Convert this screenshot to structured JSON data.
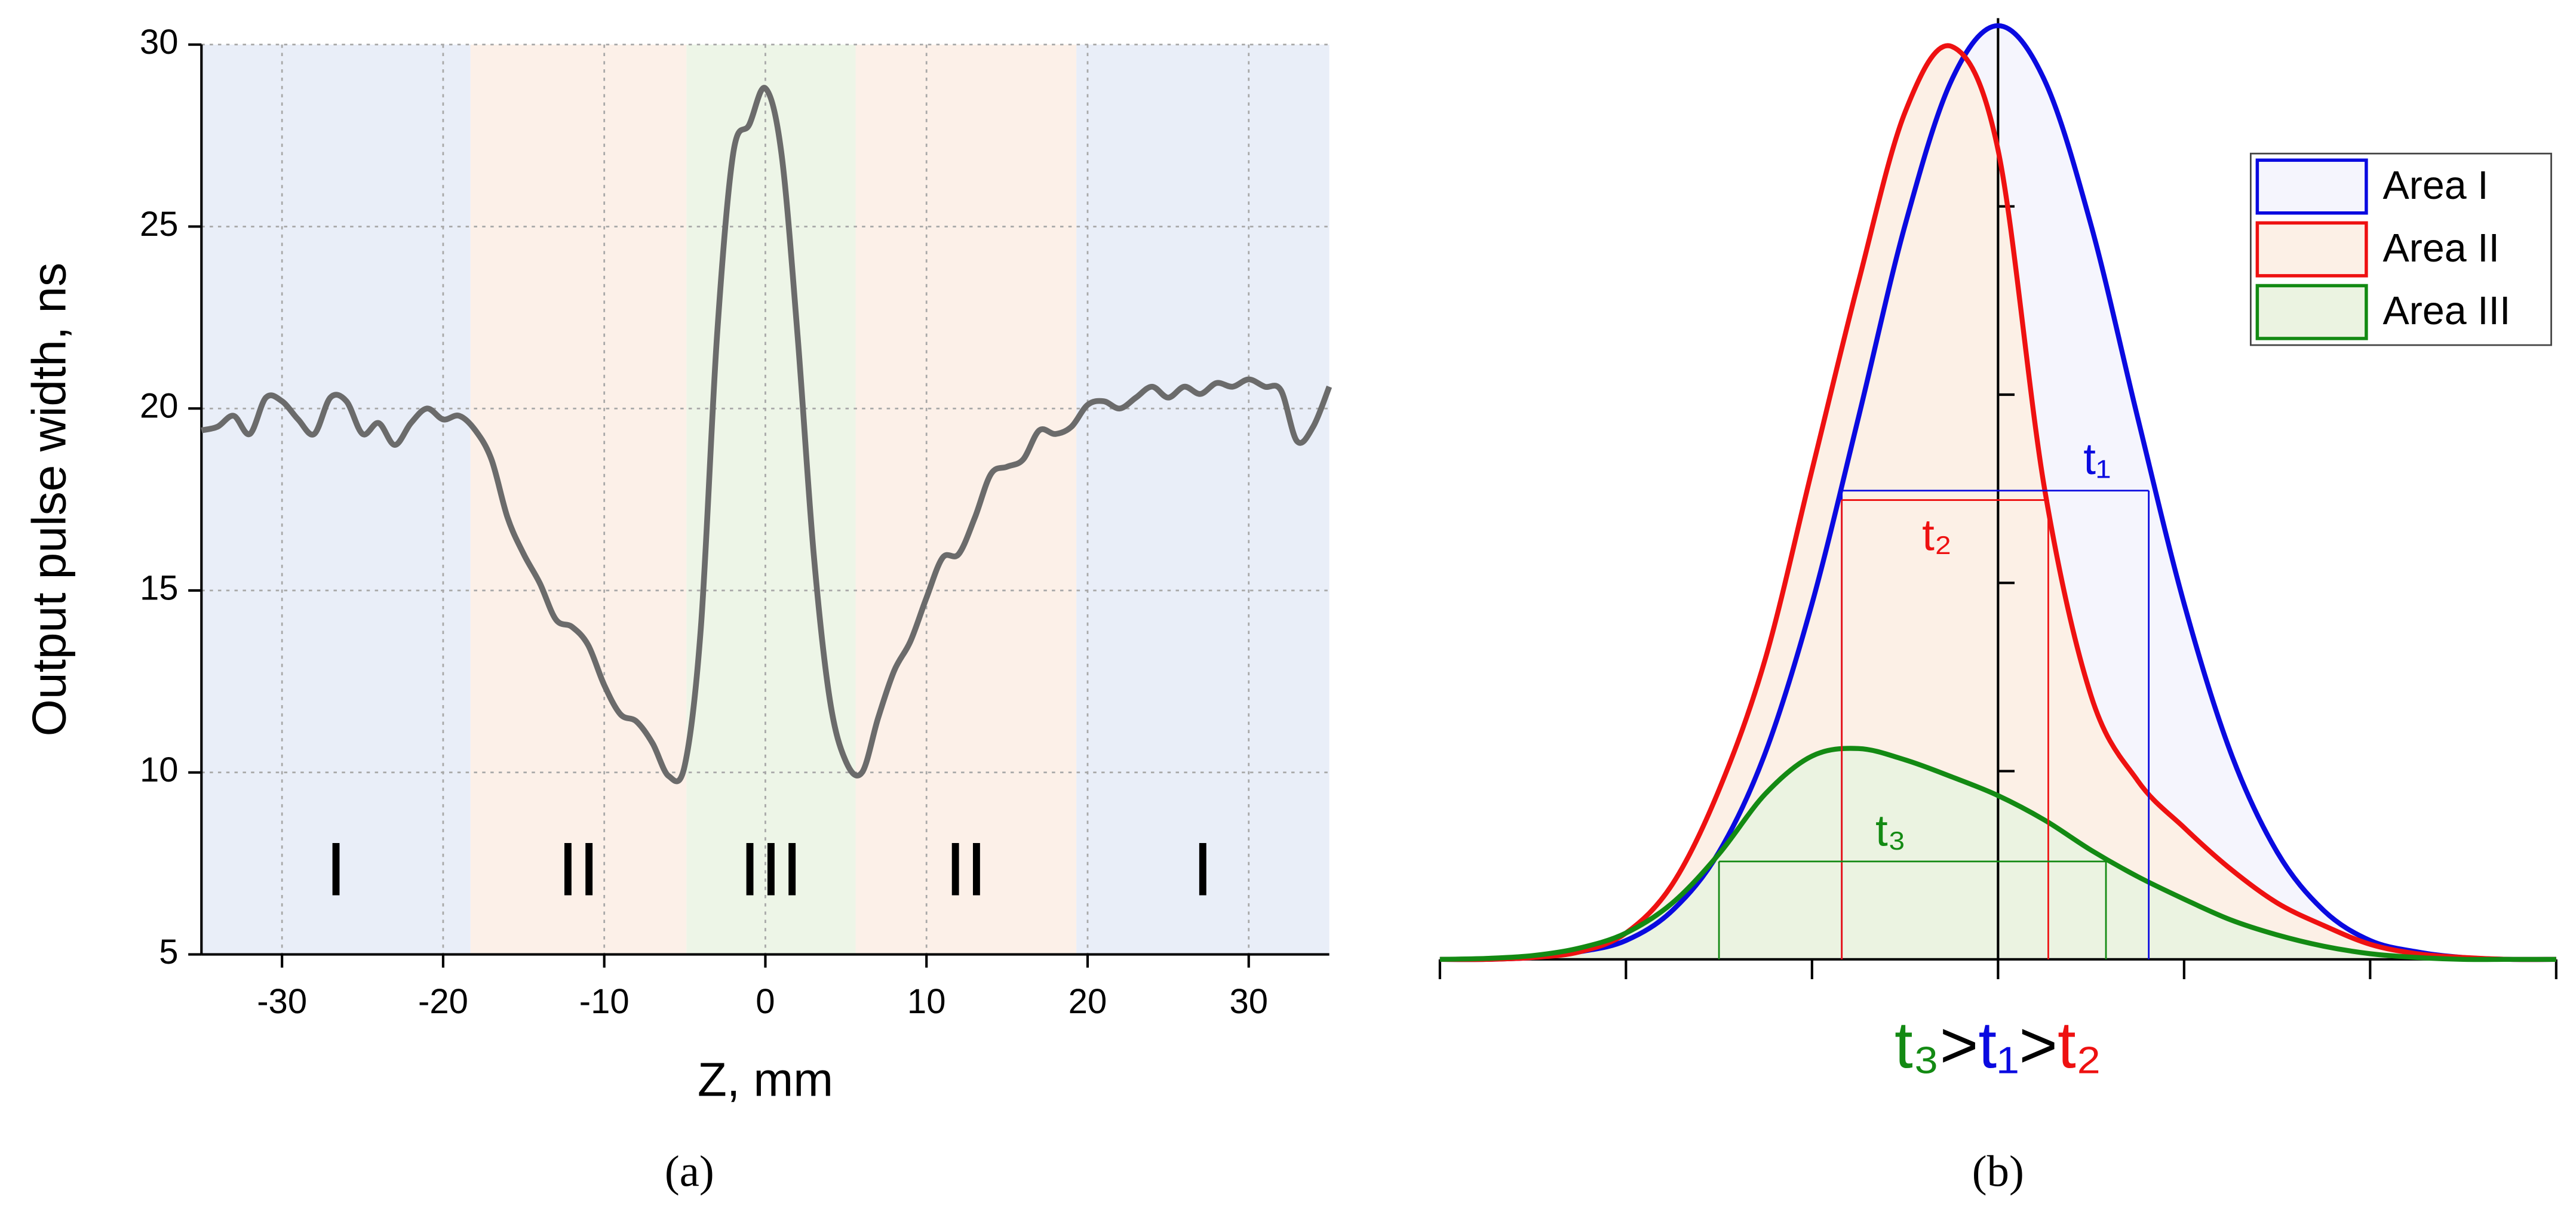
{
  "chart_data": [
    {
      "type": "line",
      "x_label": "Z, mm",
      "y_label": "Output pulse width, ns",
      "x": [
        -35,
        -34,
        -33,
        -32,
        -31,
        -30,
        -29,
        -28,
        -27,
        -26,
        -25,
        -24,
        -23,
        -22,
        -21,
        -20,
        -19,
        -18,
        -17,
        -16,
        -15,
        -14,
        -13,
        -12,
        -11,
        -10,
        -9,
        -8,
        -7,
        -6,
        -5,
        -4,
        -3,
        -2,
        -1,
        0,
        1,
        2,
        3,
        4,
        5,
        6,
        7,
        8,
        9,
        10,
        11,
        12,
        13,
        14,
        15,
        16,
        17,
        18,
        19,
        20,
        21,
        22,
        23,
        24,
        25,
        26,
        27,
        28,
        29,
        30,
        31,
        32,
        33,
        34,
        35
      ],
      "series": [
        {
          "color": "#6b6b6b",
          "values": [
            19.4,
            19.5,
            19.8,
            19.3,
            20.3,
            20.2,
            19.7,
            19.3,
            20.3,
            20.2,
            19.3,
            19.6,
            19.0,
            19.6,
            20.0,
            19.7,
            19.8,
            19.4,
            18.6,
            17.0,
            16.0,
            15.2,
            14.2,
            14.0,
            13.5,
            12.4,
            11.6,
            11.4,
            10.8,
            9.9,
            10.2,
            14.0,
            22.0,
            27.0,
            27.8,
            28.8,
            27.0,
            22.0,
            16.0,
            12.0,
            10.3,
            10.0,
            11.5,
            12.8,
            13.6,
            14.8,
            15.9,
            16.0,
            17.0,
            18.2,
            18.4,
            18.6,
            19.4,
            19.3,
            19.5,
            20.1,
            20.2,
            20.0,
            20.3,
            20.6,
            20.3,
            20.6,
            20.4,
            20.7,
            20.6,
            20.8,
            20.6,
            20.5,
            19.1,
            19.5,
            20.6
          ]
        }
      ],
      "xlim": [
        -35,
        35
      ],
      "ylim": [
        5,
        30
      ],
      "xticks": [
        -30,
        -20,
        -10,
        0,
        10,
        20,
        30
      ],
      "yticks": [
        5,
        10,
        15,
        20,
        25,
        30
      ],
      "grid": true,
      "regions": [
        {
          "range": [
            -35,
            -18.3
          ],
          "label": "I",
          "color": "#e9eef8"
        },
        {
          "range": [
            -18.3,
            -4.9
          ],
          "label": "II",
          "color": "#fcf0e8"
        },
        {
          "range": [
            -4.9,
            5.6
          ],
          "label": "III",
          "color": "#edf5e7"
        },
        {
          "range": [
            5.6,
            19.3
          ],
          "label": "II",
          "color": "#fcf0e8"
        },
        {
          "range": [
            19.3,
            35
          ],
          "label": "I",
          "color": "#e9eef8"
        }
      ],
      "caption": "(a)"
    },
    {
      "type": "area",
      "x": [
        -3,
        -2.75,
        -2.5,
        -2.25,
        -2,
        -1.75,
        -1.5,
        -1.25,
        -1,
        -0.75,
        -0.5,
        -0.25,
        0,
        0.25,
        0.5,
        0.75,
        1,
        1.25,
        1.5,
        1.75,
        2,
        2.25,
        2.5,
        2.75,
        3
      ],
      "series": [
        {
          "name": "Area I",
          "color": "#0a0ae0",
          "fill": "#f5f5fd",
          "values": [
            0,
            0,
            0.01,
            0.04,
            0.1,
            0.26,
            0.57,
            1.1,
            1.89,
            2.88,
            3.9,
            4.67,
            4.96,
            4.67,
            3.9,
            2.88,
            1.89,
            1.1,
            0.57,
            0.26,
            0.1,
            0.04,
            0.01,
            0,
            0
          ]
        },
        {
          "name": "Area II",
          "color": "#ee1111",
          "fill": "#fcf0e6",
          "values": [
            0,
            0,
            0.01,
            0.04,
            0.14,
            0.4,
            0.9,
            1.6,
            2.6,
            3.6,
            4.5,
            4.85,
            4.3,
            2.5,
            1.4,
            0.95,
            0.7,
            0.48,
            0.3,
            0.18,
            0.08,
            0.03,
            0.01,
            0,
            0
          ]
        },
        {
          "name": "Area III",
          "color": "#138a13",
          "fill": "#ebf3e1",
          "values": [
            0,
            0.005,
            0.02,
            0.06,
            0.14,
            0.3,
            0.56,
            0.88,
            1.08,
            1.12,
            1.06,
            0.97,
            0.87,
            0.74,
            0.58,
            0.44,
            0.32,
            0.21,
            0.13,
            0.07,
            0.03,
            0.01,
            0,
            0,
            0
          ]
        }
      ],
      "xlim": [
        -3,
        3
      ],
      "ylim": [
        0,
        5
      ],
      "xticks": [
        -3,
        -2,
        -1,
        0,
        1,
        2,
        3
      ],
      "yticks": [
        1,
        2,
        3,
        4
      ],
      "show_tick_labels": false,
      "legend": "upper right",
      "widths": [
        {
          "label": "t₁",
          "color": "#0a0ae0",
          "level": 2.49,
          "from": -0.84,
          "to": 0.81
        },
        {
          "label": "t₂",
          "color": "#ee1111",
          "level": 2.44,
          "from": -0.84,
          "to": 0.27
        },
        {
          "label": "t₃",
          "color": "#138a13",
          "level": 0.52,
          "from": -1.5,
          "to": 0.58
        }
      ],
      "formula": [
        {
          "text": "t₃",
          "color": "#138a13"
        },
        {
          "text": ">",
          "color": "#000000"
        },
        {
          "text": "t₁",
          "color": "#0a0ae0"
        },
        {
          "text": ">",
          "color": "#000000"
        },
        {
          "text": "t₂",
          "color": "#ee1111"
        }
      ],
      "caption": "(b)"
    }
  ]
}
